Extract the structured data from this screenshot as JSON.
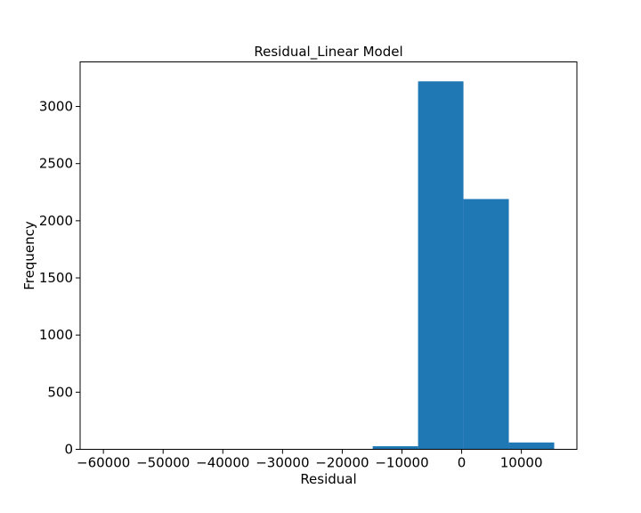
{
  "chart_data": {
    "type": "bar",
    "title": "Residual_Linear Model",
    "xlabel": "Residual",
    "ylabel": "Frequency",
    "xlim": [
      -63900,
      19300
    ],
    "ylim": [
      0,
      3390
    ],
    "bar_color": "#1f77b4",
    "grid": false,
    "legend": "none",
    "bins": [
      {
        "x0": -61000,
        "x1": -53400,
        "count": 1
      },
      {
        "x0": -53400,
        "x1": -45800,
        "count": 0
      },
      {
        "x0": -45800,
        "x1": -38200,
        "count": 0
      },
      {
        "x0": -38200,
        "x1": -30600,
        "count": 0
      },
      {
        "x0": -30600,
        "x1": -23000,
        "count": 0
      },
      {
        "x0": -23000,
        "x1": -15400,
        "count": 1
      },
      {
        "x0": -14900,
        "x1": -7300,
        "count": 27
      },
      {
        "x0": -7300,
        "x1": 300,
        "count": 3220
      },
      {
        "x0": 300,
        "x1": 7900,
        "count": 2190
      },
      {
        "x0": 7900,
        "x1": 15500,
        "count": 60
      }
    ],
    "xticks": [
      {
        "value": -60000,
        "label": "−60000"
      },
      {
        "value": -50000,
        "label": "−50000"
      },
      {
        "value": -40000,
        "label": "−40000"
      },
      {
        "value": -30000,
        "label": "−30000"
      },
      {
        "value": -20000,
        "label": "−20000"
      },
      {
        "value": -10000,
        "label": "−10000"
      },
      {
        "value": 0,
        "label": "0"
      },
      {
        "value": 10000,
        "label": "10000"
      }
    ],
    "yticks": [
      {
        "value": 0,
        "label": "0"
      },
      {
        "value": 500,
        "label": "500"
      },
      {
        "value": 1000,
        "label": "1000"
      },
      {
        "value": 1500,
        "label": "1500"
      },
      {
        "value": 2000,
        "label": "2000"
      },
      {
        "value": 2500,
        "label": "2500"
      },
      {
        "value": 3000,
        "label": "3000"
      }
    ]
  }
}
